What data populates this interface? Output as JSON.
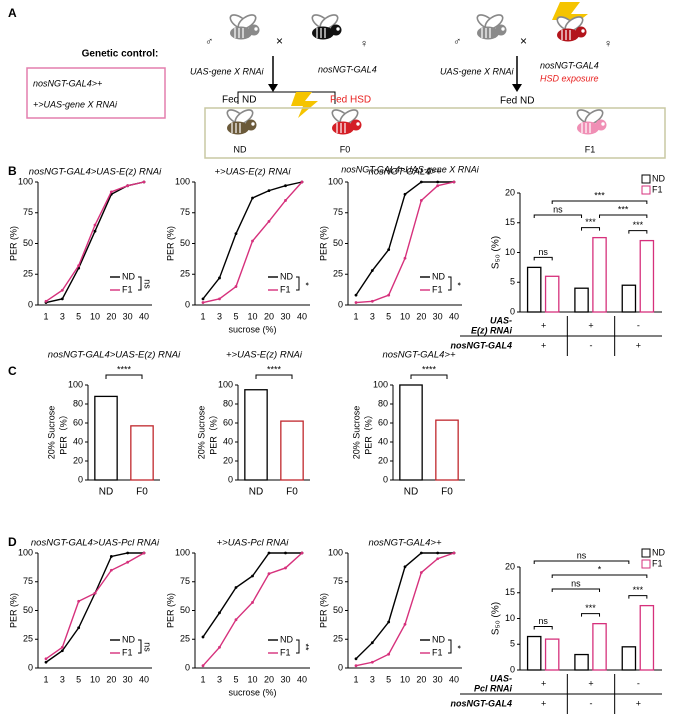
{
  "figure": {
    "panel_labels": [
      "A",
      "B",
      "C",
      "D"
    ],
    "genetic_control": {
      "heading": "Genetic control:",
      "lines": [
        "nosNGT-GAL4>+",
        "+>UAS-gene X RNAi"
      ]
    },
    "cross_1": {
      "male": "♂",
      "times": "×",
      "female": "♀",
      "father": "UAS-gene X RNAi",
      "mother": "nosNGT-GAL4",
      "diet_left": "Fed ND",
      "diet_right": "Fed HSD"
    },
    "offspring": {
      "labels": [
        "ND",
        "F0",
        "F1"
      ],
      "genotype": "nosNGT-GAL4>UAS-gene X RNAi"
    },
    "cross_2": {
      "male": "♂",
      "times": "×",
      "female": "♀",
      "father": "UAS-gene X RNAi",
      "mother": "nosNGT-GAL4",
      "mother_note": "HSD exposure",
      "diet": "Fed ND"
    }
  },
  "chart_data": [
    {
      "type": "line",
      "title": "nosNGT-GAL4>UAS-E(z) RNAi",
      "ylabel": "PER (%)",
      "categories": [
        1,
        3,
        5,
        10,
        20,
        30,
        40
      ],
      "ylim": [
        0,
        100
      ],
      "yticks": [
        0,
        25,
        50,
        75,
        100
      ],
      "legend": "lower right",
      "sig": "ns",
      "series": [
        {
          "name": "ND",
          "color": "#000000",
          "values": [
            2,
            5,
            30,
            60,
            90,
            97,
            100
          ]
        },
        {
          "name": "F1",
          "color": "#d6317c",
          "values": [
            3,
            12,
            32,
            65,
            92,
            97,
            100
          ]
        }
      ]
    },
    {
      "type": "line",
      "title": "+>UAS-E(z) RNAi",
      "ylabel": "PER (%)",
      "xlabel": "sucrose (%)",
      "categories": [
        1,
        3,
        5,
        10,
        20,
        30,
        40
      ],
      "ylim": [
        0,
        100
      ],
      "yticks": [
        0,
        25,
        50,
        75,
        100
      ],
      "legend": "lower right",
      "sig": "*",
      "series": [
        {
          "name": "ND",
          "color": "#000000",
          "values": [
            5,
            22,
            58,
            87,
            93,
            97,
            100
          ]
        },
        {
          "name": "F1",
          "color": "#d6317c",
          "values": [
            2,
            5,
            15,
            52,
            68,
            85,
            100
          ]
        }
      ]
    },
    {
      "type": "line",
      "title": "nosNGT-GAL4>+",
      "ylabel": "PER (%)",
      "categories": [
        1,
        3,
        5,
        10,
        20,
        30,
        40
      ],
      "ylim": [
        0,
        100
      ],
      "yticks": [
        0,
        25,
        50,
        75,
        100
      ],
      "legend": "lower right",
      "sig": "*",
      "series": [
        {
          "name": "ND",
          "color": "#000000",
          "values": [
            8,
            28,
            45,
            90,
            100,
            100,
            100
          ]
        },
        {
          "name": "F1",
          "color": "#d6317c",
          "values": [
            2,
            3,
            8,
            38,
            85,
            97,
            100
          ]
        }
      ]
    },
    {
      "type": "grouped_bar",
      "ylabel": "S₅₀ (%)",
      "ylim": [
        0,
        20
      ],
      "yticks": [
        0,
        5,
        10,
        15,
        20
      ],
      "legend": "upper right",
      "series": [
        {
          "name": "ND",
          "color": "#000000",
          "values": [
            7.5,
            4,
            4.5
          ]
        },
        {
          "name": "F1",
          "color": "#d6317c",
          "values": [
            6,
            12.5,
            12
          ]
        }
      ],
      "annotations": [
        "ns",
        "***",
        "***",
        "ns",
        "***",
        "***"
      ],
      "table": {
        "rows": [
          {
            "label": [
              "UAS-",
              "E(z) RNAi"
            ],
            "cells": [
              "+",
              "+",
              "-"
            ]
          },
          {
            "label": [
              "nosNGT-GAL4"
            ],
            "cells": [
              "+",
              "-",
              "+"
            ]
          }
        ]
      }
    },
    {
      "type": "bar",
      "title": "nosNGT-GAL4>UAS-E(z) RNAi",
      "ylabel": [
        "20% Sucrose",
        "PER（%）"
      ],
      "categories": [
        "ND",
        "F0"
      ],
      "values": [
        88,
        57
      ],
      "colors": [
        "#000000",
        "#c0272d"
      ],
      "ylim": [
        0,
        100
      ],
      "yticks": [
        0,
        20,
        40,
        60,
        80,
        100
      ],
      "annotation": "****"
    },
    {
      "type": "bar",
      "title": "+>UAS-E(z) RNAi",
      "ylabel": [
        "20% Sucrose",
        "PER（%）"
      ],
      "categories": [
        "ND",
        "F0"
      ],
      "values": [
        95,
        62
      ],
      "colors": [
        "#000000",
        "#c0272d"
      ],
      "ylim": [
        0,
        100
      ],
      "yticks": [
        0,
        20,
        40,
        60,
        80,
        100
      ],
      "annotation": "****"
    },
    {
      "type": "bar",
      "title": "nosNGT-GAL4>+",
      "ylabel": [
        "20% Sucrose",
        "PER（%）"
      ],
      "categories": [
        "ND",
        "F0"
      ],
      "values": [
        100,
        63
      ],
      "colors": [
        "#000000",
        "#c0272d"
      ],
      "ylim": [
        0,
        100
      ],
      "yticks": [
        0,
        20,
        40,
        60,
        80,
        100
      ],
      "annotation": "****"
    },
    {
      "type": "line",
      "title": "nosNGT-GAL4>UAS-Pcl RNAi",
      "ylabel": "PER (%)",
      "categories": [
        1,
        3,
        5,
        10,
        20,
        30,
        40
      ],
      "ylim": [
        0,
        100
      ],
      "yticks": [
        0,
        25,
        50,
        75,
        100
      ],
      "legend": "lower right",
      "sig": "ns",
      "series": [
        {
          "name": "ND",
          "color": "#000000",
          "values": [
            5,
            15,
            35,
            65,
            97,
            100,
            100
          ]
        },
        {
          "name": "F1",
          "color": "#d6317c",
          "values": [
            8,
            18,
            58,
            65,
            85,
            92,
            100
          ]
        }
      ]
    },
    {
      "type": "line",
      "title": "+>UAS-Pcl RNAi",
      "ylabel": "PER (%)",
      "xlabel": "sucrose (%)",
      "categories": [
        1,
        3,
        5,
        10,
        20,
        30,
        40
      ],
      "ylim": [
        0,
        100
      ],
      "yticks": [
        0,
        25,
        50,
        75,
        100
      ],
      "legend": "lower right",
      "sig": "**",
      "series": [
        {
          "name": "ND",
          "color": "#000000",
          "values": [
            27,
            48,
            70,
            80,
            100,
            100,
            100
          ]
        },
        {
          "name": "F1",
          "color": "#d6317c",
          "values": [
            2,
            18,
            42,
            57,
            82,
            87,
            100
          ]
        }
      ]
    },
    {
      "type": "line",
      "title": "nosNGT-GAL4>+",
      "ylabel": "PER (%)",
      "categories": [
        1,
        3,
        5,
        10,
        20,
        30,
        40
      ],
      "ylim": [
        0,
        100
      ],
      "yticks": [
        0,
        25,
        50,
        75,
        100
      ],
      "legend": "lower right",
      "sig": "*",
      "series": [
        {
          "name": "ND",
          "color": "#000000",
          "values": [
            8,
            22,
            40,
            88,
            100,
            100,
            100
          ]
        },
        {
          "name": "F1",
          "color": "#d6317c",
          "values": [
            2,
            5,
            12,
            38,
            83,
            95,
            100
          ]
        }
      ]
    },
    {
      "type": "grouped_bar",
      "ylabel": "S₅₀ (%)",
      "ylim": [
        0,
        20
      ],
      "yticks": [
        0,
        5,
        10,
        15,
        20
      ],
      "legend": "upper right",
      "series": [
        {
          "name": "ND",
          "color": "#000000",
          "values": [
            6.5,
            3,
            4.5
          ]
        },
        {
          "name": "F1",
          "color": "#d6317c",
          "values": [
            6,
            9,
            12.5
          ]
        }
      ],
      "annotations": [
        "ns",
        "***",
        "***",
        "ns",
        "*",
        "ns"
      ],
      "table": {
        "rows": [
          {
            "label": [
              "UAS-",
              "Pcl RNAi"
            ],
            "cells": [
              "+",
              "+",
              "-"
            ]
          },
          {
            "label": [
              "nosNGT-GAL4"
            ],
            "cells": [
              "+",
              "-",
              "+"
            ]
          }
        ]
      }
    }
  ]
}
